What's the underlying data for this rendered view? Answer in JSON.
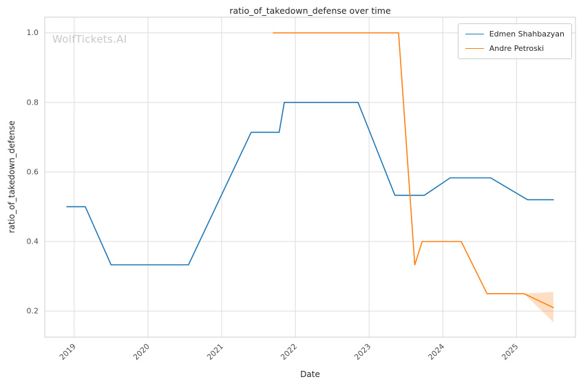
{
  "watermark": "WolfTickets.AI",
  "colors": {
    "background": "#ffffff",
    "grid": "#dcdcdc",
    "axis": "#cccccc",
    "title_text": "#262626",
    "tick_text": "#4d4d4d",
    "watermark": "#c8c8c8"
  },
  "chart_data": {
    "type": "line",
    "title": "ratio_of_takedown_defense over time",
    "xlabel": "Date",
    "ylabel": "ratio_of_takedown_defense",
    "xlim": [
      2018.6,
      2025.8
    ],
    "ylim": [
      0.125,
      1.045
    ],
    "xticks": [
      2019,
      2020,
      2021,
      2022,
      2023,
      2024,
      2025
    ],
    "yticks": [
      0.2,
      0.4,
      0.6,
      0.8,
      1.0
    ],
    "grid": true,
    "legend_position": "upper right",
    "x_tick_rotation": 45,
    "series": [
      {
        "name": "Edmen Shahbazyan",
        "color": "#1f77b4",
        "x": [
          2018.9,
          2019.15,
          2019.5,
          2020.55,
          2021.4,
          2021.78,
          2021.85,
          2022.85,
          2023.0,
          2023.35,
          2023.75,
          2024.1,
          2024.65,
          2025.15,
          2025.5
        ],
        "y": [
          0.5,
          0.5,
          0.333,
          0.333,
          0.714,
          0.714,
          0.8,
          0.8,
          0.72,
          0.533,
          0.533,
          0.583,
          0.583,
          0.52,
          0.52
        ]
      },
      {
        "name": "Andre Petroski",
        "color": "#ff7f0e",
        "x": [
          2021.7,
          2023.4,
          2023.62,
          2023.72,
          2024.25,
          2024.6,
          2025.1,
          2025.5
        ],
        "y": [
          1.0,
          1.0,
          0.333,
          0.4,
          0.4,
          0.25,
          0.25,
          0.21
        ],
        "band": {
          "x": [
            2025.1,
            2025.5
          ],
          "upper": [
            0.25,
            0.255
          ],
          "lower": [
            0.25,
            0.168
          ]
        }
      }
    ]
  }
}
